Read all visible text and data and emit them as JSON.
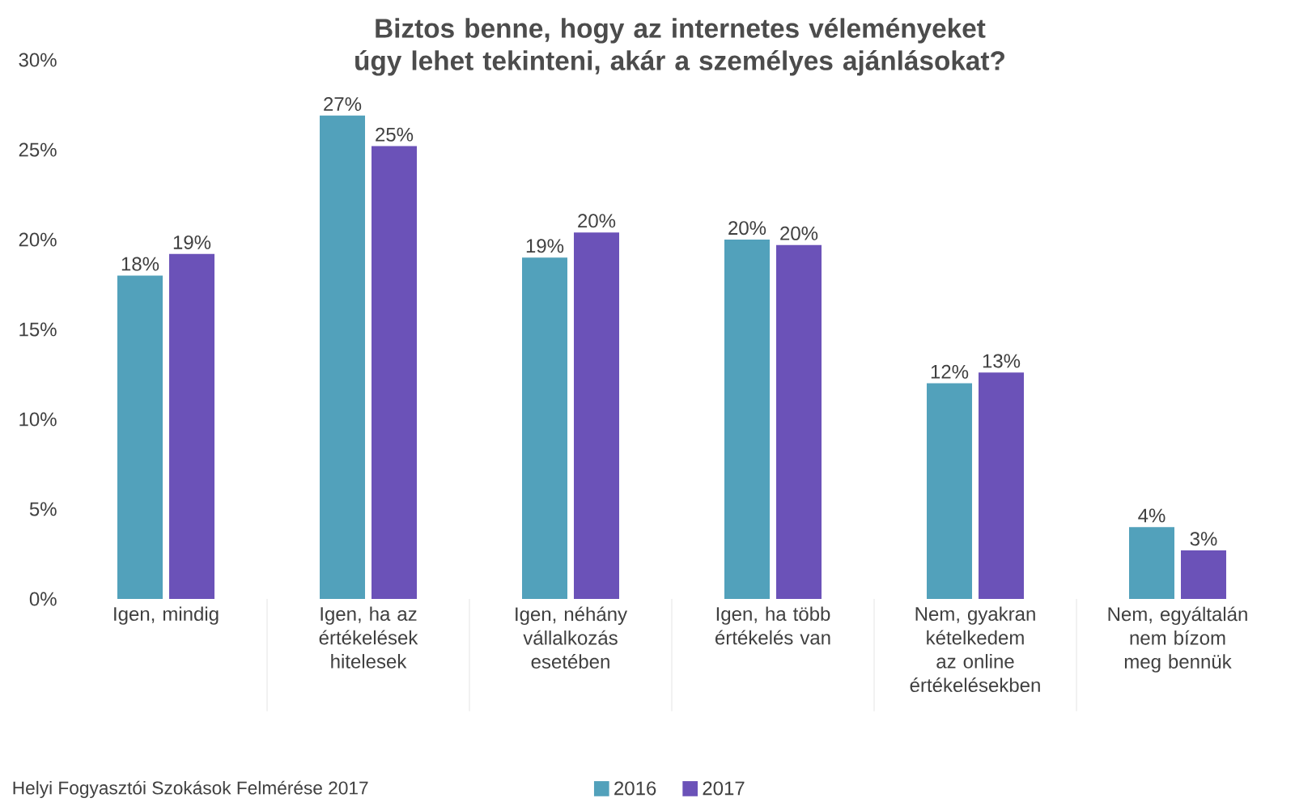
{
  "chart_data": {
    "type": "bar",
    "title": "Biztos benne, hogy az internetes véleményeket úgy lehet tekinteni, akár a személyes ajánlásokat?",
    "categories": [
      "Igen, mindig",
      "Igen, ha az értékelések hitelesek",
      "Igen, néhány vállalkozás esetében",
      "Igen, ha több értékelés van",
      "Nem, gyakran kételkedem az online értékelésekben",
      "Nem, egyáltalán nem bízom meg bennük"
    ],
    "series": [
      {
        "name": "2016",
        "color": "#52a1bb",
        "values": [
          18.0,
          26.9,
          19.0,
          20.0,
          12.0,
          4.0
        ],
        "value_labels": [
          "18%",
          "27%",
          "19%",
          "20%",
          "12%",
          "4%"
        ]
      },
      {
        "name": "2017",
        "color": "#6b52b8",
        "values": [
          19.2,
          25.2,
          20.4,
          19.7,
          12.6,
          2.7
        ],
        "value_labels": [
          "19%",
          "25%",
          "20%",
          "20%",
          "13%",
          "3%"
        ]
      }
    ],
    "ylim": [
      0,
      30
    ],
    "yticks": [
      {
        "value": 0,
        "label": "0%"
      },
      {
        "value": 5,
        "label": "5%"
      },
      {
        "value": 10,
        "label": "10%"
      },
      {
        "value": 15,
        "label": "15%"
      },
      {
        "value": 20,
        "label": "20%"
      },
      {
        "value": 25,
        "label": "25%"
      },
      {
        "value": 30,
        "label": "30%"
      }
    ],
    "grid": false,
    "legend": "bottom",
    "annotations": [
      "Helyi Fogyasztói Szokások Felmérése 2017"
    ]
  }
}
